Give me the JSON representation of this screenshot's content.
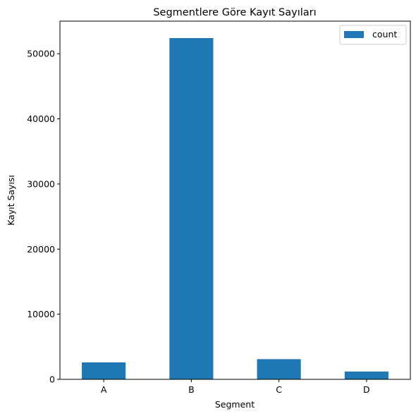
{
  "chart_data": {
    "type": "bar",
    "title": "Segmentlere Göre Kayıt Sayıları",
    "xlabel": "Segment",
    "ylabel": "Kayıt Sayısı",
    "categories": [
      "A",
      "B",
      "C",
      "D"
    ],
    "series": [
      {
        "name": "count",
        "values": [
          2600,
          52400,
          3100,
          1200
        ],
        "color": "#1f77b4"
      }
    ],
    "ylim": [
      0,
      55000
    ],
    "yticks": [
      0,
      10000,
      20000,
      30000,
      40000,
      50000
    ],
    "ytick_labels": [
      "0",
      "10000",
      "20000",
      "30000",
      "40000",
      "50000"
    ],
    "grid": false,
    "legend_position": "upper-right"
  }
}
